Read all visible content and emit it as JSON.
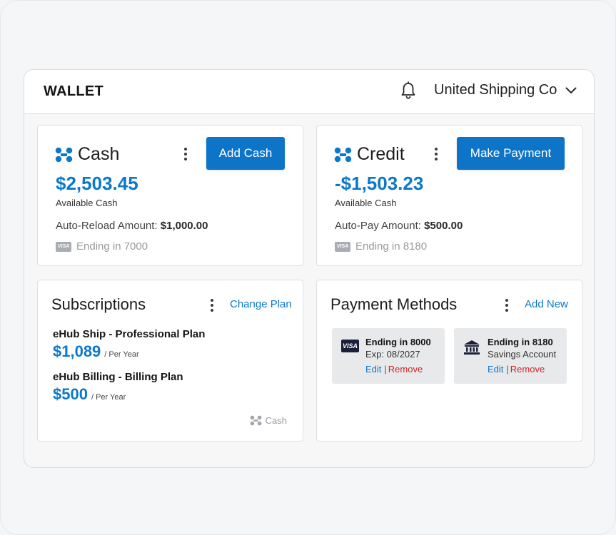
{
  "header": {
    "title": "WALLET",
    "company": "United Shipping Co"
  },
  "cash": {
    "label": "Cash",
    "button": "Add Cash",
    "amount": "$2,503.45",
    "amount_caption": "Available Cash",
    "auto_label": "Auto-Reload Amount:",
    "auto_value": "$1,000.00",
    "card_brand": "VISA",
    "ending": "Ending in 7000"
  },
  "credit": {
    "label": "Credit",
    "button": "Make Payment",
    "amount": "-$1,503.23",
    "amount_caption": "Available Cash",
    "auto_label": "Auto-Pay Amount:",
    "auto_value": "$500.00",
    "card_brand": "VISA",
    "ending": "Ending in 8180"
  },
  "subscriptions": {
    "title": "Subscriptions",
    "action": "Change Plan",
    "plans": [
      {
        "name": "eHub Ship - Professional Plan",
        "price": "$1,089",
        "period": "/ Per Year"
      },
      {
        "name": "eHub Billing - Billing Plan",
        "price": "$500",
        "period": "/ Per Year"
      }
    ],
    "source": "Cash"
  },
  "payment_methods": {
    "title": "Payment Methods",
    "action": "Add New",
    "items": [
      {
        "icon": "visa-card-icon",
        "brand": "VISA",
        "line1": "Ending in 8000",
        "line2": "Exp: 08/2027",
        "edit": "Edit",
        "separator": "|",
        "remove": "Remove"
      },
      {
        "icon": "bank-icon",
        "line1": "Ending in 8180",
        "line2": "Savings Account",
        "edit": "Edit",
        "separator": "|",
        "remove": "Remove"
      }
    ]
  },
  "colors": {
    "accent": "#0d74c8",
    "amount": "#0b78c9",
    "remove": "#d4252a",
    "visa_dark": "#1b1f3a"
  }
}
